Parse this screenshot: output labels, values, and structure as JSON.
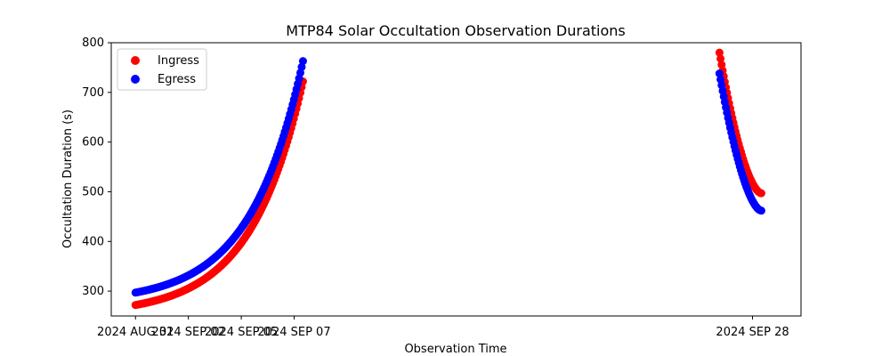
{
  "chart_data": {
    "type": "scatter",
    "title": "MTP84 Solar Occultation Observation Durations",
    "xlabel": "Observation Time",
    "ylabel": "Occultation Duration (s)",
    "xlim": [
      -1.1,
      30.2
    ],
    "ylim": [
      250,
      800
    ],
    "xticks": [
      {
        "value": 0,
        "label": "2024 AUG 31"
      },
      {
        "value": 2.4,
        "label": "2024 SEP 02"
      },
      {
        "value": 4.8,
        "label": "2024 SEP 05"
      },
      {
        "value": 7.2,
        "label": "2024 SEP 07"
      },
      {
        "value": 28.0,
        "label": "2024 SEP 28"
      }
    ],
    "yticks": [
      300,
      400,
      500,
      600,
      700,
      800
    ],
    "legend": {
      "position": "top-left"
    },
    "series": [
      {
        "name": "Ingress",
        "color": "#ff0000",
        "segments": [
          {
            "x_start": 0.0,
            "x_end": 7.6,
            "y_start": 272,
            "y_end": 722,
            "count": 130,
            "shape": "rising"
          },
          {
            "x_start": 26.5,
            "x_end": 28.4,
            "y_start": 780,
            "y_end": 497,
            "count": 40,
            "shape": "falling"
          }
        ]
      },
      {
        "name": "Egress",
        "color": "#0000ff",
        "segments": [
          {
            "x_start": 0.0,
            "x_end": 7.6,
            "y_start": 297,
            "y_end": 763,
            "count": 130,
            "shape": "rising"
          },
          {
            "x_start": 26.5,
            "x_end": 28.4,
            "y_start": 738,
            "y_end": 462,
            "count": 40,
            "shape": "falling"
          }
        ]
      }
    ]
  }
}
